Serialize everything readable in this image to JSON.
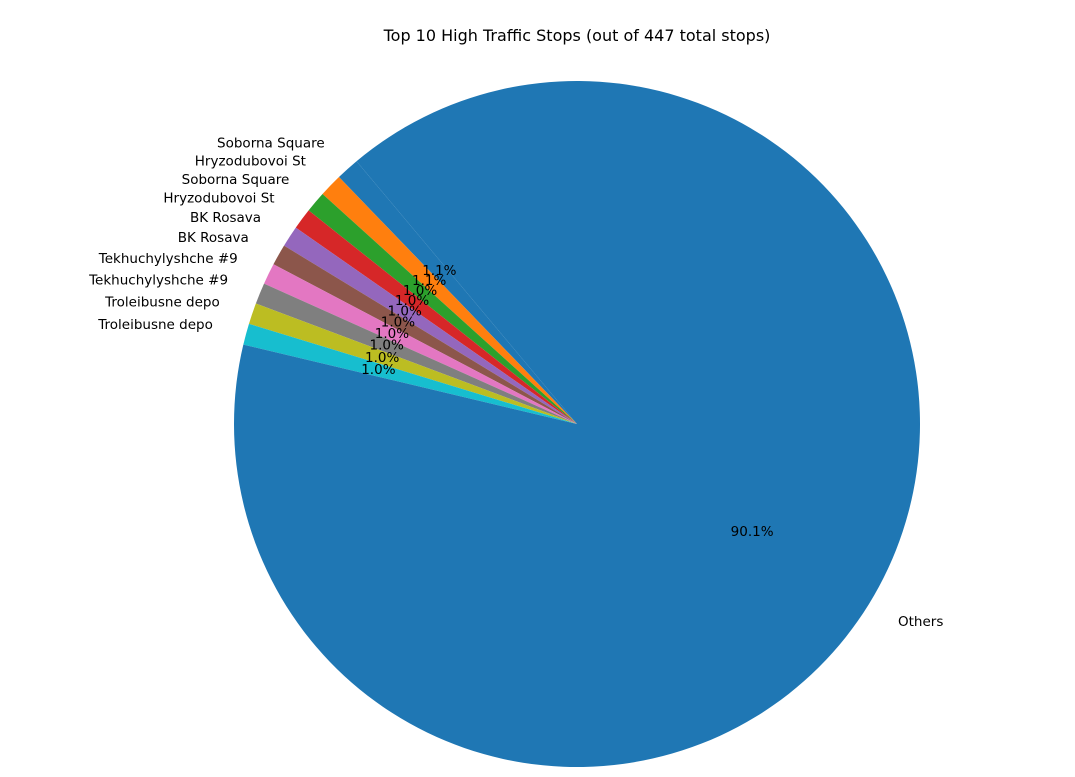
{
  "chart_data": {
    "type": "pie",
    "title": "Top 10 High Traffic Stops (out of 447 total stops)",
    "slices": [
      {
        "label": "Soborna Square",
        "value": 1.1,
        "pct_text": "1.1%",
        "color": "#1f77b4"
      },
      {
        "label": "Hryzodubovoi St",
        "value": 1.1,
        "pct_text": "1.1%",
        "color": "#ff7f0e"
      },
      {
        "label": "Soborna Square",
        "value": 1.0,
        "pct_text": "1.0%",
        "color": "#2ca02c"
      },
      {
        "label": "Hryzodubovoi St",
        "value": 1.0,
        "pct_text": "1.0%",
        "color": "#d62728"
      },
      {
        "label": "BK Rosava",
        "value": 1.0,
        "pct_text": "1.0%",
        "color": "#9467bd"
      },
      {
        "label": "BK Rosava",
        "value": 1.0,
        "pct_text": "1.0%",
        "color": "#8c564b"
      },
      {
        "label": "Tekhuchylyshche #9",
        "value": 1.0,
        "pct_text": "1.0%",
        "color": "#e377c2"
      },
      {
        "label": "Tekhuchylyshche #9",
        "value": 1.0,
        "pct_text": "1.0%",
        "color": "#7f7f7f"
      },
      {
        "label": "Troleibusne depo",
        "value": 1.0,
        "pct_text": "1.0%",
        "color": "#bcbd22"
      },
      {
        "label": "Troleibusne depo",
        "value": 1.0,
        "pct_text": "1.0%",
        "color": "#17becf"
      },
      {
        "label": "Others",
        "value": 90.1,
        "pct_text": "90.1%",
        "color": "#1f77b4"
      }
    ],
    "start_angle_deg": 130,
    "direction": "counterclockwise",
    "legend": "none"
  }
}
